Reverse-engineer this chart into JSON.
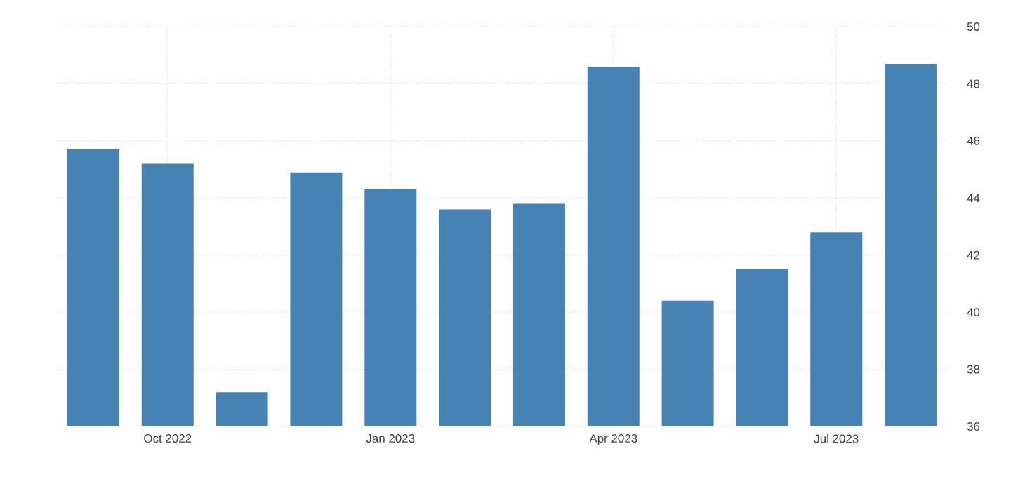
{
  "chart_data": {
    "type": "bar",
    "categories": [
      null,
      "Oct 2022",
      null,
      null,
      "Jan 2023",
      null,
      null,
      "Apr 2023",
      null,
      null,
      "Jul 2023",
      null
    ],
    "values": [
      45.7,
      45.2,
      37.2,
      44.9,
      44.3,
      43.6,
      43.8,
      48.6,
      40.4,
      41.5,
      42.8,
      48.7
    ],
    "color": "#4682b4",
    "ylim": [
      36,
      50
    ],
    "yticks": [
      36,
      38,
      40,
      42,
      44,
      46,
      48,
      50
    ],
    "grid": true
  }
}
